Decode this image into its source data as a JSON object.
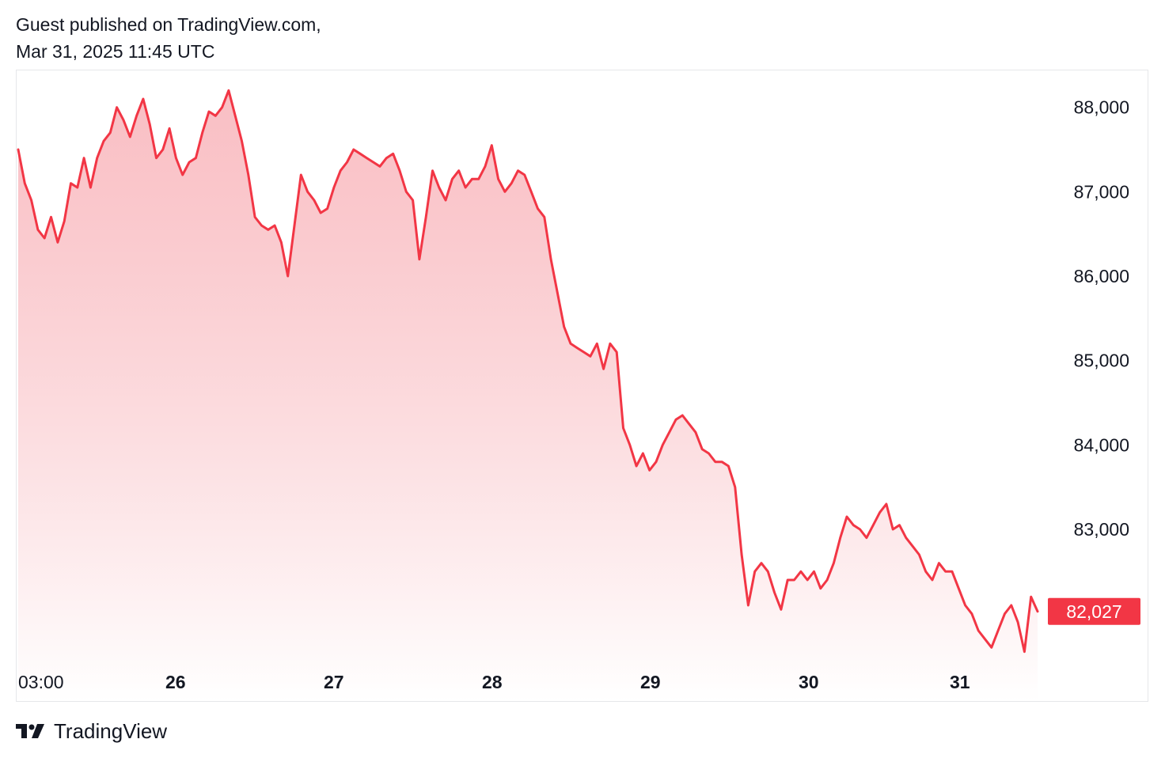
{
  "header": {
    "publisher": "Guest published on TradingView.com,",
    "timestamp": "Mar 31, 2025 11:45 UTC"
  },
  "footer": {
    "brand": "TradingView",
    "logo_icon": "tradingview-logo-icon"
  },
  "colors": {
    "line": "#f23645",
    "fill_top": "#f7a9b0",
    "fill_bottom": "#ffffff",
    "badge_bg": "#f23645",
    "badge_text": "#ffffff",
    "axis_text": "#131722"
  },
  "chart_data": {
    "type": "area",
    "title": "",
    "xlabel": "",
    "ylabel": "",
    "x_tick_labels": [
      {
        "label": "03:00",
        "t": 0.0,
        "bold": false
      },
      {
        "label": "26",
        "t": 0.818,
        "bold": true
      },
      {
        "label": "27",
        "t": 1.818,
        "bold": true
      },
      {
        "label": "28",
        "t": 2.818,
        "bold": true
      },
      {
        "label": "29",
        "t": 3.818,
        "bold": true
      },
      {
        "label": "30",
        "t": 4.818,
        "bold": true
      },
      {
        "label": "31",
        "t": 5.773,
        "bold": true
      }
    ],
    "y_ticks": [
      83000,
      84000,
      85000,
      86000,
      87000,
      88000
    ],
    "y_tick_labels": [
      "83,000",
      "84,000",
      "85,000",
      "86,000",
      "87,000",
      "88,000"
    ],
    "ylim": [
      81500,
      88400
    ],
    "xlim_days": [
      0,
      6.45
    ],
    "last_value": 82027,
    "last_value_label": "82,027",
    "grid": false,
    "series": [
      {
        "points": [
          [
            0.0,
            87500
          ],
          [
            0.05,
            87100
          ],
          [
            0.1,
            86900
          ],
          [
            0.15,
            86550
          ],
          [
            0.2,
            86450
          ],
          [
            0.25,
            86700
          ],
          [
            0.3,
            86400
          ],
          [
            0.35,
            86650
          ],
          [
            0.4,
            87100
          ],
          [
            0.45,
            87050
          ],
          [
            0.5,
            87400
          ],
          [
            0.55,
            87050
          ],
          [
            0.6,
            87400
          ],
          [
            0.65,
            87600
          ],
          [
            0.7,
            87700
          ],
          [
            0.75,
            88000
          ],
          [
            0.8,
            87850
          ],
          [
            0.85,
            87650
          ],
          [
            0.9,
            87900
          ],
          [
            0.95,
            88100
          ],
          [
            1.0,
            87800
          ],
          [
            1.05,
            87400
          ],
          [
            1.1,
            87500
          ],
          [
            1.15,
            87750
          ],
          [
            1.2,
            87400
          ],
          [
            1.25,
            87200
          ],
          [
            1.3,
            87350
          ],
          [
            1.35,
            87400
          ],
          [
            1.4,
            87700
          ],
          [
            1.45,
            87950
          ],
          [
            1.5,
            87900
          ],
          [
            1.55,
            88000
          ],
          [
            1.6,
            88200
          ],
          [
            1.65,
            87900
          ],
          [
            1.7,
            87600
          ],
          [
            1.75,
            87200
          ],
          [
            1.8,
            86700
          ],
          [
            1.85,
            86600
          ],
          [
            1.9,
            86550
          ],
          [
            1.95,
            86600
          ],
          [
            2.0,
            86400
          ],
          [
            2.05,
            86000
          ],
          [
            2.1,
            86600
          ],
          [
            2.15,
            87200
          ],
          [
            2.2,
            87000
          ],
          [
            2.25,
            86900
          ],
          [
            2.3,
            86750
          ],
          [
            2.35,
            86800
          ],
          [
            2.4,
            87050
          ],
          [
            2.45,
            87250
          ],
          [
            2.5,
            87350
          ],
          [
            2.55,
            87500
          ],
          [
            2.6,
            87450
          ],
          [
            2.65,
            87400
          ],
          [
            2.7,
            87350
          ],
          [
            2.75,
            87300
          ],
          [
            2.8,
            87400
          ],
          [
            2.85,
            87450
          ],
          [
            2.9,
            87250
          ],
          [
            2.95,
            87000
          ],
          [
            3.0,
            86900
          ],
          [
            3.05,
            86200
          ],
          [
            3.1,
            86700
          ],
          [
            3.15,
            87250
          ],
          [
            3.2,
            87050
          ],
          [
            3.25,
            86900
          ],
          [
            3.3,
            87150
          ],
          [
            3.35,
            87250
          ],
          [
            3.4,
            87050
          ],
          [
            3.45,
            87150
          ],
          [
            3.5,
            87150
          ],
          [
            3.55,
            87300
          ],
          [
            3.6,
            87550
          ],
          [
            3.65,
            87150
          ],
          [
            3.7,
            87000
          ],
          [
            3.75,
            87100
          ],
          [
            3.8,
            87250
          ],
          [
            3.85,
            87200
          ],
          [
            3.9,
            87000
          ],
          [
            3.95,
            86800
          ],
          [
            4.0,
            86700
          ],
          [
            4.05,
            86200
          ],
          [
            4.1,
            85800
          ],
          [
            4.15,
            85400
          ],
          [
            4.2,
            85200
          ],
          [
            4.25,
            85150
          ],
          [
            4.3,
            85100
          ],
          [
            4.35,
            85050
          ],
          [
            4.4,
            85200
          ],
          [
            4.45,
            84900
          ],
          [
            4.5,
            85200
          ],
          [
            4.55,
            85100
          ],
          [
            4.6,
            84200
          ],
          [
            4.65,
            84000
          ],
          [
            4.7,
            83750
          ],
          [
            4.75,
            83900
          ],
          [
            4.8,
            83700
          ],
          [
            4.85,
            83800
          ],
          [
            4.9,
            84000
          ],
          [
            4.95,
            84150
          ],
          [
            5.0,
            84300
          ],
          [
            5.05,
            84350
          ],
          [
            5.1,
            84250
          ],
          [
            5.15,
            84150
          ],
          [
            5.2,
            83950
          ],
          [
            5.25,
            83900
          ],
          [
            5.3,
            83800
          ],
          [
            5.35,
            83800
          ],
          [
            5.4,
            83750
          ],
          [
            5.45,
            83500
          ],
          [
            5.5,
            82700
          ],
          [
            5.55,
            82100
          ],
          [
            5.6,
            82500
          ],
          [
            5.65,
            82600
          ],
          [
            5.7,
            82500
          ],
          [
            5.75,
            82250
          ],
          [
            5.8,
            82050
          ],
          [
            5.85,
            82400
          ],
          [
            5.9,
            82400
          ],
          [
            5.95,
            82500
          ],
          [
            6.0,
            82400
          ],
          [
            6.05,
            82500
          ],
          [
            6.1,
            82300
          ],
          [
            6.15,
            82400
          ],
          [
            6.2,
            82600
          ],
          [
            6.25,
            82900
          ],
          [
            6.3,
            83150
          ],
          [
            6.35,
            83050
          ],
          [
            6.4,
            83000
          ],
          [
            6.45,
            82900
          ],
          [
            6.5,
            83050
          ],
          [
            6.55,
            83200
          ],
          [
            6.6,
            83300
          ],
          [
            6.65,
            83000
          ],
          [
            6.7,
            83050
          ],
          [
            6.75,
            82900
          ],
          [
            6.8,
            82800
          ],
          [
            6.85,
            82700
          ],
          [
            6.9,
            82500
          ],
          [
            6.95,
            82400
          ],
          [
            7.0,
            82600
          ],
          [
            7.05,
            82500
          ],
          [
            7.1,
            82500
          ],
          [
            7.15,
            82300
          ],
          [
            7.2,
            82100
          ],
          [
            7.25,
            82000
          ],
          [
            7.3,
            81800
          ],
          [
            7.35,
            81700
          ],
          [
            7.4,
            81600
          ],
          [
            7.45,
            81800
          ],
          [
            7.5,
            82000
          ],
          [
            7.55,
            82100
          ],
          [
            7.6,
            81900
          ],
          [
            7.65,
            81550
          ],
          [
            7.7,
            82200
          ],
          [
            7.75,
            82027
          ]
        ]
      }
    ]
  }
}
